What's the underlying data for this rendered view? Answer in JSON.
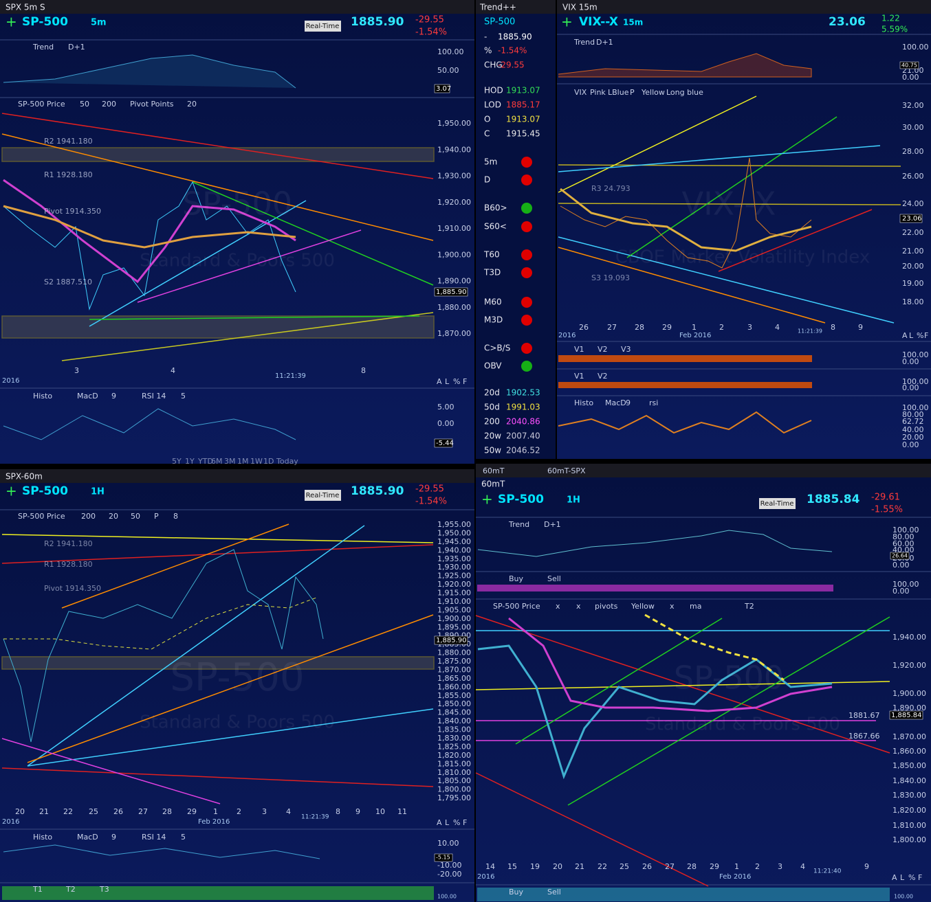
{
  "tl": {
    "title": "SPX 5m S",
    "symbol": "SP-500",
    "interval": "5m",
    "realtime": "Real-Time",
    "price": "1885.90",
    "change": "-29.55",
    "pct": "-1.54%",
    "trend": [
      "Trend",
      "D+1"
    ],
    "trend_ticks": [
      "100.00",
      "50.00"
    ],
    "trend_value": "3.07",
    "study": [
      "SP-500 Price",
      "50",
      "200",
      "Pivot Points",
      "20"
    ],
    "pivots": [
      "R2 1941.180",
      "R1 1928.180",
      "Pivot 1914.350",
      "S2 1887.510"
    ],
    "yticks": [
      "1,950.00",
      "1,940.00",
      "1,930.00",
      "1,920.00",
      "1,910.00",
      "1,900.00",
      "1,890.00",
      "1,880.00",
      "1,870.00"
    ],
    "last": "1,885.90",
    "xticks": [
      "3",
      "4",
      "8"
    ],
    "year": "2016",
    "time": "11:21:39",
    "lower": [
      "Histo",
      "MacD",
      "9",
      "RSI 14",
      "5"
    ],
    "lower_ticks": [
      "5.00",
      "0.00"
    ],
    "lower_value": "-5.44",
    "ranges": [
      "5Y",
      "1Y",
      "YTD",
      "6M",
      "3M",
      "1M",
      "1W",
      "1D",
      "Today"
    ],
    "corner": [
      "A",
      "L",
      "%",
      "F"
    ],
    "watermark": [
      "SP-500",
      "Standard & Poors 500"
    ]
  },
  "list": {
    "title": "Trend++",
    "symbol": "SP-500",
    "rows": [
      {
        "label": "-",
        "value": "1885.90",
        "color": "#ffffff"
      },
      {
        "label": "%",
        "value": "-1.54%",
        "color": "#ff3b3b"
      },
      {
        "label": "CHG",
        "value": "-29.55",
        "color": "#ff3b3b"
      }
    ],
    "quotes": [
      {
        "label": "HOD",
        "value": "1913.07",
        "color": "#33dd55"
      },
      {
        "label": "LOD",
        "value": "1885.17",
        "color": "#ff3b3b"
      },
      {
        "label": "O",
        "value": "1913.07",
        "color": "#f0e040"
      },
      {
        "label": "C",
        "value": "1915.45",
        "color": "#e8e8e8"
      }
    ],
    "signals": [
      {
        "label": "5m",
        "color": "#e00000"
      },
      {
        "label": "D",
        "color": "#e00000"
      },
      {
        "label": "B60>",
        "color": "#16b016"
      },
      {
        "label": "S60<",
        "color": "#e00000"
      },
      {
        "label": "T60",
        "color": "#e00000"
      },
      {
        "label": "T3D",
        "color": "#e00000"
      },
      {
        "label": "M60",
        "color": "#e00000"
      },
      {
        "label": "M3D",
        "color": "#e00000"
      },
      {
        "label": "C>B/S",
        "color": "#e00000"
      },
      {
        "label": "OBV",
        "color": "#16b016"
      }
    ],
    "averages": [
      {
        "label": "20d",
        "value": "1902.53",
        "color": "#40e0e0"
      },
      {
        "label": "50d",
        "value": "1991.03",
        "color": "#f0e040"
      },
      {
        "label": "200",
        "value": "2040.86",
        "color": "#ff50ff"
      },
      {
        "label": "20w",
        "value": "2007.40",
        "color": "#c8c8d8"
      },
      {
        "label": "50w",
        "value": "2046.52",
        "color": "#c8c8d8"
      }
    ]
  },
  "tr": {
    "title": "VIX 15m",
    "symbol": "VIX--X",
    "interval": "15m",
    "price": "23.06",
    "change": "1.22",
    "pct": "5.59%",
    "trend": [
      "Trend",
      "D+1"
    ],
    "trend_ticks": [
      "100.00",
      "21.00",
      "0.00"
    ],
    "trend_value": "40.75",
    "study": [
      "VIX",
      "Pink",
      "LBlue",
      "P",
      "Yellow",
      "Long blue"
    ],
    "pivots": [
      "R3 24.793",
      "S3 19.093"
    ],
    "yticks": [
      "32.00",
      "30.00",
      "28.00",
      "26.00",
      "24.00",
      "22.00",
      "21.00",
      "20.00",
      "19.00",
      "18.00"
    ],
    "last": "23.06",
    "xticks": [
      "26",
      "27",
      "28",
      "29",
      "1",
      "2",
      "3",
      "4",
      "8",
      "9"
    ],
    "month": "Feb 2016",
    "year": "2016",
    "time": "11:21:39",
    "sub1": [
      "V1",
      "V2",
      "V3"
    ],
    "sub1_ticks": [
      "100.00",
      "0.00"
    ],
    "sub2": [
      "V1",
      "V2"
    ],
    "sub2_ticks": [
      "100.00",
      "0.00"
    ],
    "sub3": [
      "Histo",
      "MacD",
      "9",
      "rsi"
    ],
    "sub3_ticks": [
      "100.00",
      "80.00",
      "62.72",
      "40.00",
      "20.00",
      "0.00"
    ],
    "corner": [
      "A",
      "L",
      "%",
      "F"
    ],
    "watermark": [
      "VIX--X",
      "CBOE Market Volatility Index"
    ]
  },
  "bl": {
    "title": "SPX-60m",
    "symbol": "SP-500",
    "interval": "1H",
    "realtime": "Real-Time",
    "price": "1885.90",
    "change": "-29.55",
    "pct": "-1.54%",
    "study": [
      "SP-500 Price",
      "200",
      "20",
      "50",
      "P",
      "8"
    ],
    "pivots": [
      "R2 1941.180",
      "R1 1928.180",
      "Pivot 1914.350"
    ],
    "yticks": [
      "1,955.00",
      "1,950.00",
      "1,945.00",
      "1,940.00",
      "1,935.00",
      "1,930.00",
      "1,925.00",
      "1,920.00",
      "1,915.00",
      "1,910.00",
      "1,905.00",
      "1,900.00",
      "1,895.00",
      "1,890.00",
      "1,885.00",
      "1,880.00",
      "1,875.00",
      "1,870.00",
      "1,865.00",
      "1,860.00",
      "1,855.00",
      "1,850.00",
      "1,845.00",
      "1,840.00",
      "1,835.00",
      "1,830.00",
      "1,825.00",
      "1,820.00",
      "1,815.00",
      "1,810.00",
      "1,805.00",
      "1,800.00",
      "1,795.00"
    ],
    "last": "1,885.90",
    "xticks": [
      "20",
      "21",
      "22",
      "25",
      "26",
      "27",
      "28",
      "29",
      "1",
      "2",
      "3",
      "4",
      "8",
      "9",
      "10",
      "11"
    ],
    "month": "Feb 2016",
    "year": "2016",
    "time": "11:21:39",
    "lower": [
      "Histo",
      "MacD",
      "9",
      "RSI 14",
      "5"
    ],
    "lower_ticks": [
      "10.00",
      "-10.00",
      "-20.00"
    ],
    "lower_value": "-5.15",
    "bottom": [
      "T1",
      "T2",
      "T3"
    ],
    "bottom_tick": "100.00",
    "corner": [
      "A",
      "L",
      "%",
      "F"
    ],
    "watermark": [
      "SP-500",
      "Standard & Poors 500"
    ]
  },
  "br": {
    "tabs": [
      "60mT",
      "60mT-SPX"
    ],
    "title": "60mT",
    "symbol": "SP-500",
    "interval": "1H",
    "realtime": "Real-Time",
    "price": "1885.84",
    "change": "-29.61",
    "pct": "-1.55%",
    "trend": [
      "Trend",
      "D+1"
    ],
    "trend_ticks": [
      "100.00",
      "80.00",
      "60.00",
      "40.00",
      "20.00",
      "0.00"
    ],
    "trend_value": "26.64",
    "buysell": [
      "Buy",
      "Sell"
    ],
    "buysell_ticks": [
      "100.00",
      "0.00"
    ],
    "study": [
      "SP-500 Price",
      "x",
      "x",
      "pivots",
      "Yellow",
      "x",
      "ma",
      "T2"
    ],
    "yticks": [
      "1,940.00",
      "1,920.00",
      "1,900.00",
      "1,890.00",
      "1,870.00",
      "1,860.00",
      "1,850.00",
      "1,840.00",
      "1,830.00",
      "1,820.00",
      "1,810.00",
      "1,800.00"
    ],
    "levels": [
      "1881.67",
      "1867.66"
    ],
    "last": "1,885.84",
    "xticks": [
      "14",
      "15",
      "19",
      "20",
      "21",
      "22",
      "25",
      "26",
      "27",
      "28",
      "29",
      "1",
      "2",
      "3",
      "4",
      "9"
    ],
    "month": "Feb 2016",
    "year": "2016",
    "time": "11:21:40",
    "bottom": [
      "Buy",
      "Sell"
    ],
    "bottom_tick": "100.00",
    "corner": [
      "A",
      "L",
      "%",
      "F"
    ],
    "watermark": [
      "SP-500",
      "Standard & Poors 500"
    ]
  }
}
